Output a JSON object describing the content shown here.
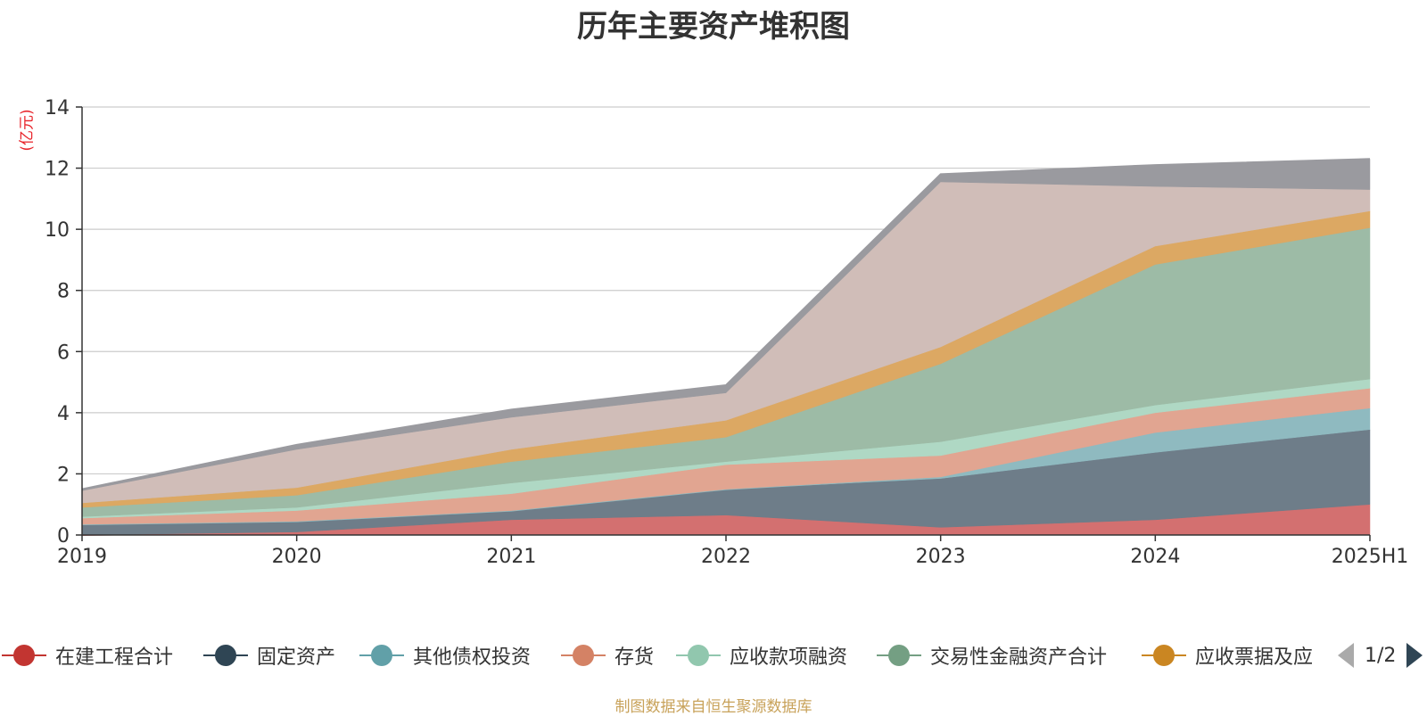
{
  "title": "历年主要资产堆积图",
  "y_unit": "(亿元)",
  "source": "制图数据来自恒生聚源数据库",
  "pager": {
    "text": "1/2"
  },
  "chart_data": {
    "type": "area",
    "stacked": true,
    "title": "历年主要资产堆积图",
    "ylabel": "(亿元)",
    "ylim": [
      0,
      14
    ],
    "yticks": [
      0,
      2,
      4,
      6,
      8,
      10,
      12,
      14
    ],
    "grid": true,
    "legend_position": "bottom",
    "categories": [
      "2019",
      "2020",
      "2021",
      "2022",
      "2023",
      "2024",
      "2025H1"
    ],
    "series": [
      {
        "name": "在建工程合计",
        "color": "#c23531",
        "fill": "#d37070",
        "values": [
          0.0,
          0.1,
          0.5,
          0.65,
          0.25,
          0.5,
          1.0
        ]
      },
      {
        "name": "固定资产",
        "color": "#2f4554",
        "fill": "#6e7d89",
        "values": [
          0.35,
          0.35,
          0.3,
          0.85,
          1.6,
          2.2,
          2.45
        ]
      },
      {
        "name": "其他债权投资",
        "color": "#61a0a8",
        "fill": "#8fbac0",
        "values": [
          0.0,
          0.0,
          0.0,
          0.0,
          0.05,
          0.65,
          0.7
        ]
      },
      {
        "name": "存货",
        "color": "#d48265",
        "fill": "#e1a591",
        "values": [
          0.2,
          0.35,
          0.55,
          0.8,
          0.7,
          0.65,
          0.65
        ]
      },
      {
        "name": "应收款项融资",
        "color": "#91c7ae",
        "fill": "#afd8c4",
        "values": [
          0.05,
          0.1,
          0.35,
          0.1,
          0.45,
          0.25,
          0.3
        ]
      },
      {
        "name": "交易性金融资产合计",
        "color": "#749f83",
        "fill": "#9dbba6",
        "values": [
          0.3,
          0.4,
          0.7,
          0.8,
          2.55,
          4.6,
          4.95
        ]
      },
      {
        "name": "应收票据及应",
        "color": "#ca8622",
        "fill": "#dca863",
        "values": [
          0.15,
          0.25,
          0.4,
          0.55,
          0.55,
          0.6,
          0.55
        ]
      },
      {
        "name": "",
        "color": "#bda29a",
        "fill": "#d0bdb8",
        "values": [
          0.4,
          1.25,
          1.05,
          0.9,
          5.4,
          1.95,
          0.7
        ]
      },
      {
        "name": "",
        "color": "#6e7074",
        "fill": "#9a9a9f",
        "values": [
          0.05,
          0.15,
          0.25,
          0.25,
          0.25,
          0.7,
          1.0
        ]
      }
    ]
  }
}
